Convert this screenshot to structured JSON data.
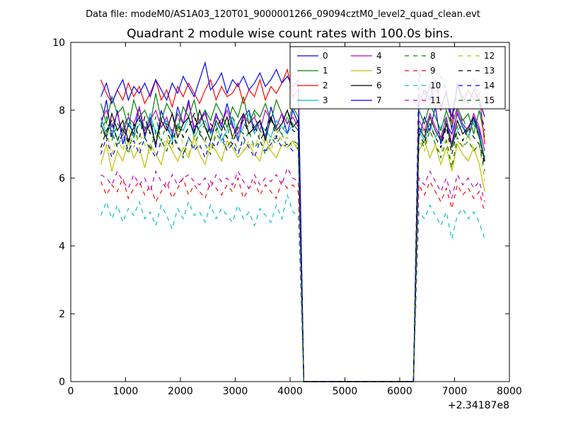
{
  "suptitle": "Data file: modeM0/AS1A03_120T01_9000001266_09094cztM0_level2_quad_clean.evt",
  "chart_data": {
    "type": "line",
    "title": "Quadrant 2 module wise count rates with 100.0s bins.",
    "xlabel": "",
    "ylabel": "",
    "x_offset_label": "+2.34187e8",
    "xlim": [
      0,
      8000
    ],
    "ylim": [
      0,
      10
    ],
    "xticks": [
      0,
      1000,
      2000,
      3000,
      4000,
      5000,
      6000,
      7000,
      8000
    ],
    "yticks": [
      0,
      2,
      4,
      6,
      8,
      10
    ],
    "grid": false,
    "legend_position": "top-right",
    "legend_columns": 4,
    "x": [
      550,
      650,
      750,
      850,
      950,
      1050,
      1150,
      1250,
      1350,
      1450,
      1550,
      1650,
      1750,
      1850,
      1950,
      2050,
      2150,
      2250,
      2350,
      2450,
      2550,
      2650,
      2750,
      2850,
      2950,
      3050,
      3150,
      3250,
      3350,
      3450,
      3550,
      3650,
      3750,
      3850,
      3950,
      4050,
      4150,
      4250,
      4350,
      4450,
      4550,
      4650,
      4750,
      4850,
      4950,
      5050,
      5150,
      5250,
      5350,
      5450,
      5550,
      5650,
      5750,
      5850,
      5950,
      6050,
      6150,
      6250,
      6350,
      6450,
      6550,
      6650,
      6750,
      6850,
      6950,
      7050,
      7150,
      7250,
      7350,
      7450,
      7550
    ],
    "series": [
      {
        "name": "0",
        "color": "#0000ff",
        "dash": "solid",
        "values": [
          7.5,
          8.3,
          7.2,
          8.0,
          7.0,
          7.6,
          7.3,
          8.1,
          7.2,
          7.8,
          6.9,
          8.0,
          7.5,
          7.2,
          8.1,
          7.6,
          8.3,
          7.4,
          7.7,
          8.0,
          7.3,
          7.9,
          7.5,
          8.2,
          7.6,
          7.1,
          7.8,
          8.0,
          7.4,
          7.7,
          7.2,
          8.1,
          7.5,
          7.9,
          7.3,
          8.0,
          7.6,
          0,
          0,
          0,
          0,
          0,
          0,
          0,
          0,
          0,
          0,
          0,
          0,
          0,
          0,
          0,
          0,
          0,
          0,
          0,
          0,
          0,
          7.2,
          7.8,
          7.4,
          8.1,
          7.0,
          7.6,
          7.3,
          7.9,
          7.5,
          7.2,
          7.8,
          7.4,
          6.5
        ]
      },
      {
        "name": "1",
        "color": "#008000",
        "dash": "solid",
        "values": [
          8.2,
          7.6,
          8.4,
          7.9,
          8.1,
          7.5,
          8.3,
          7.8,
          8.0,
          7.6,
          8.5,
          7.7,
          8.2,
          7.9,
          7.4,
          8.1,
          7.8,
          8.3,
          7.6,
          8.0,
          7.7,
          8.2,
          7.9,
          7.5,
          8.1,
          7.8,
          8.4,
          7.6,
          8.0,
          7.8,
          8.2,
          7.7,
          8.3,
          7.9,
          7.6,
          8.1,
          7.8,
          0,
          0,
          0,
          0,
          0,
          0,
          0,
          0,
          0,
          0,
          0,
          0,
          0,
          0,
          0,
          0,
          0,
          0,
          0,
          0,
          0,
          8.0,
          7.6,
          8.2,
          7.8,
          7.4,
          8.0,
          7.5,
          8.1,
          7.7,
          7.9,
          7.3,
          8.0,
          7.2
        ]
      },
      {
        "name": "2",
        "color": "#ff0000",
        "dash": "solid",
        "values": [
          8.9,
          8.5,
          8.2,
          8.6,
          8.3,
          8.8,
          8.4,
          8.7,
          8.2,
          8.5,
          8.9,
          8.3,
          8.6,
          8.1,
          8.7,
          8.4,
          8.8,
          8.5,
          8.2,
          8.6,
          8.9,
          8.3,
          8.7,
          8.4,
          8.5,
          8.8,
          8.2,
          8.6,
          8.4,
          8.9,
          8.3,
          8.7,
          8.5,
          8.8,
          9.2,
          8.4,
          8.6,
          0,
          0,
          0,
          0,
          0,
          0,
          0,
          0,
          0,
          0,
          0,
          0,
          0,
          0,
          0,
          0,
          0,
          0,
          0,
          0,
          0,
          8.5,
          8.2,
          8.7,
          8.3,
          8.0,
          8.6,
          7.6,
          8.8,
          8.2,
          8.6,
          8.3,
          8.5,
          7.0
        ]
      },
      {
        "name": "3",
        "color": "#00bfbf",
        "dash": "solid",
        "values": [
          7.8,
          7.3,
          7.6,
          7.1,
          7.5,
          7.8,
          7.2,
          7.6,
          7.4,
          7.9,
          7.3,
          7.5,
          7.7,
          7.1,
          7.6,
          7.4,
          7.8,
          7.2,
          7.5,
          7.7,
          7.3,
          7.6,
          7.1,
          7.4,
          7.8,
          7.2,
          7.5,
          7.9,
          7.3,
          7.6,
          7.4,
          7.2,
          7.7,
          7.5,
          7.3,
          7.6,
          7.4,
          0,
          0,
          0,
          0,
          0,
          0,
          0,
          0,
          0,
          0,
          0,
          0,
          0,
          0,
          0,
          0,
          0,
          0,
          0,
          0,
          0,
          7.4,
          7.1,
          7.6,
          7.2,
          7.5,
          7.8,
          6.9,
          7.4,
          7.6,
          7.2,
          7.7,
          7.3,
          6.6
        ]
      },
      {
        "name": "4",
        "color": "#bf00bf",
        "dash": "solid",
        "values": [
          7.7,
          8.0,
          7.5,
          7.9,
          7.3,
          7.8,
          7.6,
          8.1,
          7.4,
          7.7,
          8.0,
          7.5,
          7.8,
          7.3,
          7.9,
          7.6,
          8.2,
          7.5,
          7.7,
          7.9,
          7.4,
          7.8,
          7.6,
          8.0,
          7.5,
          7.3,
          7.9,
          7.6,
          7.8,
          7.4,
          8.0,
          7.7,
          7.5,
          7.9,
          7.6,
          7.8,
          7.5,
          0,
          0,
          0,
          0,
          0,
          0,
          0,
          0,
          0,
          0,
          0,
          0,
          0,
          0,
          0,
          0,
          0,
          0,
          0,
          0,
          0,
          7.7,
          7.4,
          7.9,
          7.5,
          7.2,
          7.8,
          7.0,
          8.0,
          7.6,
          7.4,
          7.9,
          7.5,
          6.8
        ]
      },
      {
        "name": "5",
        "color": "#bfbf00",
        "dash": "solid",
        "values": [
          6.4,
          7.0,
          6.2,
          6.8,
          6.5,
          7.1,
          6.6,
          6.9,
          6.3,
          7.0,
          6.7,
          6.4,
          7.1,
          6.8,
          6.5,
          6.9,
          6.6,
          7.2,
          6.7,
          6.4,
          7.0,
          6.8,
          6.5,
          7.1,
          6.9,
          6.6,
          6.8,
          7.0,
          6.7,
          6.5,
          7.2,
          6.8,
          6.6,
          7.0,
          6.9,
          7.1,
          6.8,
          0,
          0,
          0,
          0,
          0,
          0,
          0,
          0,
          0,
          0,
          0,
          0,
          0,
          0,
          0,
          0,
          0,
          0,
          0,
          0,
          0,
          6.8,
          7.1,
          6.6,
          7.0,
          6.4,
          6.9,
          6.2,
          7.0,
          6.7,
          6.5,
          6.9,
          6.4,
          5.6
        ]
      },
      {
        "name": "6",
        "color": "#000000",
        "dash": "solid",
        "values": [
          7.6,
          7.2,
          7.9,
          7.4,
          7.7,
          7.1,
          7.5,
          7.8,
          7.3,
          7.6,
          7.0,
          7.7,
          7.4,
          7.9,
          7.2,
          7.6,
          7.8,
          7.3,
          8.0,
          7.5,
          7.1,
          7.7,
          7.4,
          7.8,
          7.2,
          7.6,
          7.9,
          7.3,
          7.5,
          7.7,
          7.1,
          7.8,
          7.4,
          7.6,
          8.0,
          7.5,
          7.7,
          0,
          0,
          0,
          0,
          0,
          0,
          0,
          0,
          0,
          0,
          0,
          0,
          0,
          0,
          0,
          0,
          0,
          0,
          0,
          0,
          0,
          7.5,
          7.2,
          7.8,
          7.4,
          7.1,
          7.6,
          6.9,
          7.7,
          7.3,
          7.5,
          7.8,
          7.2,
          6.5
        ]
      },
      {
        "name": "7",
        "color": "#0000ff",
        "dash": "solid",
        "values": [
          8.4,
          8.8,
          8.2,
          8.6,
          8.9,
          8.3,
          8.7,
          8.5,
          8.8,
          8.4,
          8.9,
          8.6,
          8.3,
          8.8,
          8.5,
          9.0,
          8.7,
          8.4,
          8.9,
          9.4,
          8.6,
          8.8,
          9.1,
          8.5,
          8.9,
          8.7,
          9.0,
          8.6,
          8.8,
          9.1,
          8.7,
          8.9,
          9.2,
          8.8,
          9.0,
          8.7,
          8.9,
          0,
          0,
          0,
          0,
          0,
          0,
          0,
          0,
          0,
          0,
          0,
          0,
          0,
          0,
          0,
          0,
          0,
          0,
          0,
          0,
          0,
          8.2,
          8.6,
          8.3,
          8.9,
          8.1,
          8.5,
          7.8,
          8.7,
          8.4,
          8.2,
          8.6,
          8.3,
          7.8
        ]
      },
      {
        "name": "8",
        "color": "#008000",
        "dash": "dashed",
        "values": [
          7.3,
          7.8,
          7.1,
          7.6,
          7.4,
          7.9,
          7.2,
          7.7,
          7.5,
          7.3,
          7.8,
          7.1,
          7.6,
          7.4,
          7.9,
          7.2,
          7.5,
          7.8,
          7.3,
          7.6,
          7.1,
          7.7,
          7.4,
          7.2,
          7.8,
          7.5,
          7.3,
          7.6,
          7.9,
          7.4,
          7.2,
          7.7,
          7.5,
          7.3,
          7.8,
          7.6,
          7.4,
          0,
          0,
          0,
          0,
          0,
          0,
          0,
          0,
          0,
          0,
          0,
          0,
          0,
          0,
          0,
          0,
          0,
          0,
          0,
          0,
          0,
          7.6,
          7.3,
          7.8,
          7.4,
          7.1,
          7.7,
          6.9,
          7.5,
          7.8,
          7.3,
          7.6,
          7.2,
          6.6
        ]
      },
      {
        "name": "9",
        "color": "#ff0000",
        "dash": "dashed",
        "values": [
          5.9,
          5.5,
          5.8,
          5.6,
          6.0,
          5.4,
          5.7,
          5.9,
          5.5,
          5.8,
          5.3,
          5.6,
          5.9,
          5.4,
          5.7,
          6.0,
          5.5,
          5.8,
          5.6,
          5.4,
          5.9,
          5.7,
          5.5,
          5.8,
          5.6,
          6.0,
          5.4,
          5.7,
          5.9,
          5.5,
          5.8,
          5.6,
          5.4,
          5.9,
          5.7,
          5.8,
          5.6,
          0,
          0,
          0,
          0,
          0,
          0,
          0,
          0,
          0,
          0,
          0,
          0,
          0,
          0,
          0,
          0,
          0,
          0,
          0,
          0,
          0,
          5.8,
          5.5,
          5.9,
          5.6,
          5.3,
          5.7,
          5.1,
          5.8,
          5.5,
          5.7,
          5.4,
          5.6,
          5.0
        ]
      },
      {
        "name": "10",
        "color": "#00bfbf",
        "dash": "dashed",
        "values": [
          4.9,
          5.3,
          4.8,
          5.2,
          4.7,
          5.1,
          4.9,
          5.3,
          4.8,
          5.0,
          4.6,
          5.2,
          4.9,
          4.5,
          5.1,
          4.8,
          5.3,
          4.9,
          5.0,
          4.7,
          5.2,
          4.8,
          5.1,
          4.9,
          4.7,
          5.2,
          4.8,
          5.0,
          4.6,
          5.1,
          4.9,
          4.7,
          5.2,
          4.8,
          5.5,
          5.0,
          4.9,
          0,
          0,
          0,
          0,
          0,
          0,
          0,
          0,
          0,
          0,
          0,
          0,
          0,
          0,
          0,
          0,
          0,
          0,
          0,
          0,
          0,
          5.0,
          4.8,
          5.2,
          4.9,
          4.6,
          5.0,
          4.2,
          4.9,
          5.1,
          4.8,
          5.0,
          4.7,
          4.2
        ]
      },
      {
        "name": "11",
        "color": "#bf00bf",
        "dash": "dashed",
        "values": [
          6.1,
          6.0,
          5.8,
          6.2,
          5.9,
          5.7,
          6.1,
          5.8,
          6.0,
          5.6,
          6.2,
          5.9,
          5.7,
          6.1,
          5.8,
          6.0,
          6.1,
          5.9,
          5.8,
          6.0,
          5.7,
          6.1,
          5.9,
          6.0,
          5.8,
          6.2,
          5.9,
          5.7,
          6.1,
          5.8,
          6.0,
          5.9,
          6.1,
          5.8,
          6.3,
          6.0,
          5.9,
          0,
          0,
          0,
          0,
          0,
          0,
          0,
          0,
          0,
          0,
          0,
          0,
          0,
          0,
          0,
          0,
          0,
          0,
          0,
          0,
          0,
          6.0,
          5.8,
          6.2,
          5.9,
          5.6,
          6.0,
          5.4,
          6.1,
          5.8,
          6.0,
          5.7,
          5.9,
          5.3
        ]
      },
      {
        "name": "12",
        "color": "#bfbf00",
        "dash": "dashed",
        "values": [
          6.9,
          7.4,
          6.7,
          7.2,
          6.8,
          7.5,
          6.9,
          7.3,
          7.0,
          6.7,
          7.4,
          6.9,
          7.2,
          6.8,
          7.5,
          7.0,
          6.7,
          7.3,
          6.9,
          7.1,
          6.8,
          7.4,
          7.0,
          6.9,
          7.2,
          7.5,
          6.8,
          7.1,
          6.9,
          7.3,
          7.0,
          6.8,
          7.4,
          7.1,
          7.2,
          6.9,
          7.0,
          0,
          0,
          0,
          0,
          0,
          0,
          0,
          0,
          0,
          0,
          0,
          0,
          0,
          0,
          0,
          0,
          0,
          0,
          0,
          0,
          0,
          7.1,
          6.8,
          7.4,
          7.0,
          6.7,
          7.2,
          6.4,
          7.1,
          6.9,
          7.3,
          6.8,
          7.0,
          5.9
        ]
      },
      {
        "name": "13",
        "color": "#000000",
        "dash": "dashed",
        "values": [
          6.9,
          7.4,
          7.7,
          7.1,
          7.5,
          7.0,
          7.6,
          7.2,
          7.8,
          7.3,
          7.1,
          7.7,
          7.4,
          7.0,
          7.6,
          7.2,
          7.5,
          7.9,
          7.3,
          7.1,
          7.6,
          7.4,
          7.8,
          7.2,
          7.0,
          7.5,
          7.7,
          7.3,
          7.6,
          7.1,
          7.4,
          7.8,
          7.2,
          7.6,
          8.0,
          7.4,
          7.3,
          0,
          0,
          0,
          0,
          0,
          0,
          0,
          0,
          0,
          0,
          0,
          0,
          0,
          0,
          0,
          0,
          0,
          0,
          0,
          0,
          0,
          7.3,
          7.0,
          7.6,
          7.2,
          6.9,
          7.5,
          6.7,
          7.4,
          7.1,
          7.5,
          7.2,
          7.0,
          6.4
        ]
      },
      {
        "name": "14",
        "color": "#0000ff",
        "dash": "dashed",
        "values": [
          6.7,
          7.2,
          6.6,
          7.0,
          7.3,
          6.8,
          7.1,
          6.7,
          7.2,
          6.9,
          6.6,
          7.1,
          6.8,
          7.3,
          6.9,
          6.7,
          7.2,
          6.8,
          7.0,
          6.6,
          7.1,
          6.9,
          7.3,
          6.8,
          7.0,
          6.7,
          7.2,
          6.9,
          6.6,
          7.1,
          6.8,
          7.0,
          7.2,
          6.9,
          7.0,
          6.8,
          6.9,
          0,
          0,
          0,
          0,
          0,
          0,
          0,
          0,
          0,
          0,
          0,
          0,
          0,
          0,
          0,
          0,
          0,
          0,
          0,
          0,
          0,
          9.2,
          8.4,
          8.8,
          8.1,
          9.0,
          8.6,
          7.4,
          8.8,
          8.3,
          8.6,
          8.9,
          8.2,
          7.4
        ]
      },
      {
        "name": "15",
        "color": "#008000",
        "dash": "dashed",
        "values": [
          7.6,
          7.1,
          7.4,
          6.9,
          7.3,
          6.7,
          7.5,
          7.0,
          7.2,
          6.8,
          7.4,
          7.1,
          6.8,
          7.3,
          7.0,
          6.6,
          7.2,
          6.9,
          7.4,
          7.0,
          6.7,
          7.3,
          7.1,
          6.9,
          7.2,
          6.8,
          7.0,
          7.4,
          6.9,
          7.1,
          6.7,
          7.2,
          7.0,
          7.3,
          6.9,
          7.1,
          7.0,
          0,
          0,
          0,
          0,
          0,
          0,
          0,
          0,
          0,
          0,
          0,
          0,
          0,
          0,
          0,
          0,
          0,
          0,
          0,
          0,
          0,
          7.2,
          6.9,
          7.4,
          7.0,
          6.6,
          7.1,
          6.3,
          7.2,
          6.9,
          7.1,
          6.8,
          7.0,
          6.2
        ]
      }
    ]
  }
}
